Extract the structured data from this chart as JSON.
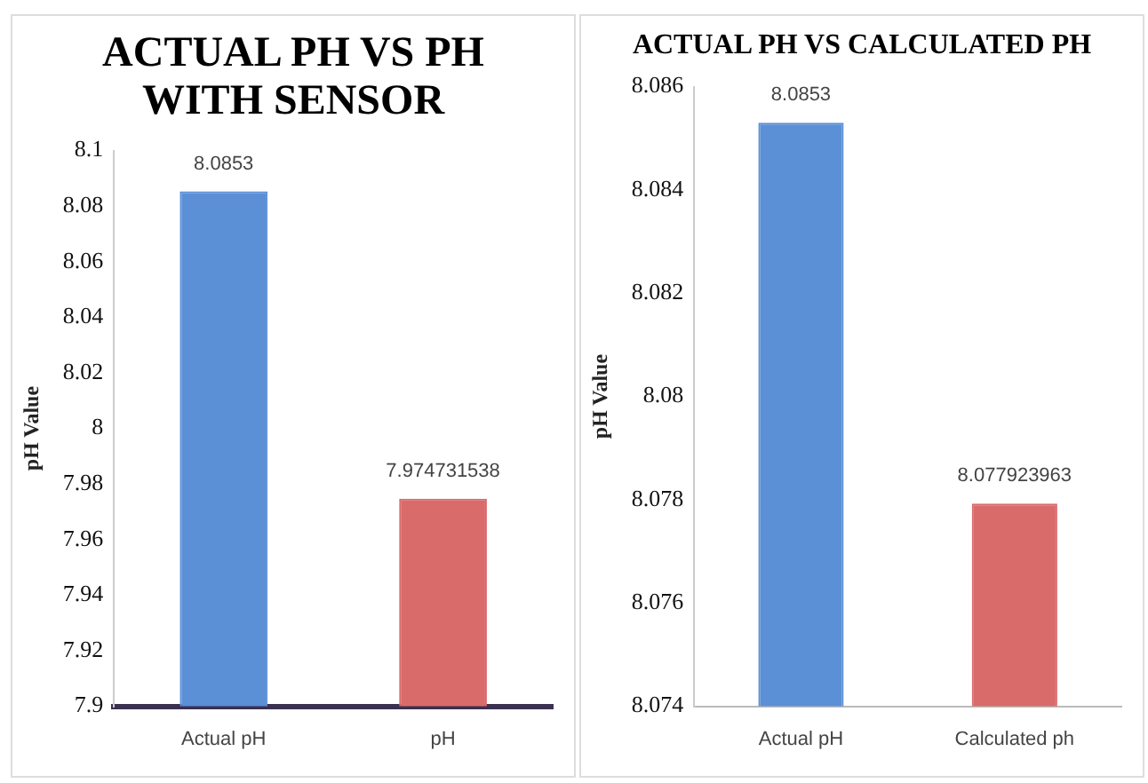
{
  "chart_data": [
    {
      "type": "bar",
      "title": "ACTUAL PH VS PH WITH SENSOR",
      "ylabel": "pH Value",
      "categories": [
        "Actual pH",
        "pH"
      ],
      "values": [
        8.0853,
        7.974731538
      ],
      "colors": [
        "#5b8fd6",
        "#d96b6b"
      ],
      "ylim": [
        7.9,
        8.1
      ],
      "yticks": [
        7.9,
        7.92,
        7.94,
        7.96,
        7.98,
        8,
        8.02,
        8.04,
        8.06,
        8.08,
        8.1
      ],
      "data_labels": true,
      "grid": false,
      "legend": false
    },
    {
      "type": "bar",
      "title": "ACTUAL PH VS CALCULATED PH",
      "ylabel": "pH Value",
      "categories": [
        "Actual pH",
        "Calculated ph"
      ],
      "values": [
        8.0853,
        8.077923963
      ],
      "colors": [
        "#5b8fd6",
        "#d96b6b"
      ],
      "ylim": [
        8.074,
        8.086
      ],
      "yticks": [
        8.074,
        8.076,
        8.078,
        8.08,
        8.082,
        8.084,
        8.086
      ],
      "data_labels": true,
      "grid": false,
      "legend": false
    }
  ]
}
